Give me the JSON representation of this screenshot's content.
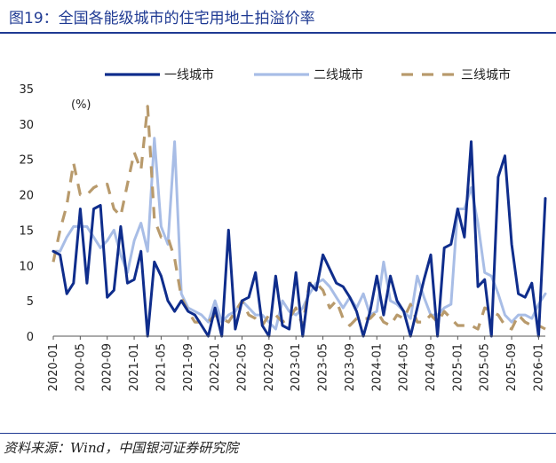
{
  "header": {
    "title": "图19：全国各能级城市的住宅用地土拍溢价率"
  },
  "footer": {
    "source": "资料来源：Wind，中国银河证券研究院"
  },
  "chart_data": {
    "type": "line",
    "unit": "(%)",
    "ylim": [
      0,
      35
    ],
    "yticks": [
      "35",
      "30",
      "25",
      "20",
      "15",
      "10",
      "5",
      "0"
    ],
    "xticks": [
      "2020-01",
      "2020-05",
      "2020-09",
      "2021-01",
      "2021-05",
      "2021-09",
      "2022-01",
      "2022-05",
      "2022-09",
      "2023-01",
      "2023-05",
      "2023-09",
      "2024-01",
      "2024-05",
      "2024-09",
      "2025-01",
      "2025-05",
      "2025-09",
      "2026-01"
    ],
    "legend_position": "top",
    "x": [
      "2020-01",
      "2020-02",
      "2020-03",
      "2020-04",
      "2020-05",
      "2020-06",
      "2020-07",
      "2020-08",
      "2020-09",
      "2020-10",
      "2020-11",
      "2020-12",
      "2021-01",
      "2021-02",
      "2021-03",
      "2021-04",
      "2021-05",
      "2021-06",
      "2021-07",
      "2021-08",
      "2021-09",
      "2021-10",
      "2021-11",
      "2021-12",
      "2022-01",
      "2022-02",
      "2022-03",
      "2022-04",
      "2022-05",
      "2022-06",
      "2022-07",
      "2022-08",
      "2022-09",
      "2022-10",
      "2022-11",
      "2022-12",
      "2023-01",
      "2023-02",
      "2023-03",
      "2023-04",
      "2023-05",
      "2023-06",
      "2023-07",
      "2023-08",
      "2023-09",
      "2023-10",
      "2023-11",
      "2023-12",
      "2024-01",
      "2024-02",
      "2024-03",
      "2024-04",
      "2024-05",
      "2024-06",
      "2024-07",
      "2024-08",
      "2024-09",
      "2024-10",
      "2024-11",
      "2024-12",
      "2025-01",
      "2025-02",
      "2025-03",
      "2025-04",
      "2025-05",
      "2025-06",
      "2025-07",
      "2025-08",
      "2025-09",
      "2025-10",
      "2025-11",
      "2025-12",
      "2026-01",
      "2026-02"
    ],
    "series": [
      {
        "name": "一线城市",
        "color": "#0f2d8c",
        "style": "solid",
        "values": [
          12,
          11.5,
          6,
          7.5,
          18,
          7.5,
          18,
          18.5,
          5.5,
          6.5,
          15.5,
          7.5,
          8,
          12,
          0,
          10.5,
          8.5,
          5,
          3.5,
          5,
          3.5,
          3,
          1.5,
          0,
          4,
          0,
          15,
          1,
          5,
          5.5,
          9,
          1.5,
          0,
          8.5,
          1.5,
          1,
          9,
          0,
          7.5,
          6.5,
          11.5,
          9.5,
          7.5,
          7,
          5.5,
          3.5,
          0,
          3.5,
          8.5,
          3,
          8.5,
          5,
          3.5,
          0,
          4,
          8,
          11.5,
          0,
          12.5,
          13,
          18,
          14,
          27.5,
          7,
          8,
          0,
          22.5,
          25.5,
          13,
          6,
          5.5,
          7.5,
          0,
          19.5
        ]
      },
      {
        "name": "二线城市",
        "color": "#a8bde6",
        "style": "solid",
        "values": [
          12,
          12,
          14,
          15.5,
          15.5,
          15.5,
          14,
          12.5,
          13.5,
          15,
          11.5,
          9,
          13.5,
          16,
          12,
          28,
          15.5,
          13,
          27.5,
          6,
          4,
          3.5,
          3,
          2,
          5,
          2,
          3,
          3.5,
          5,
          4,
          3,
          3,
          2,
          1,
          5,
          3.5,
          3,
          4,
          6,
          7.5,
          8,
          7,
          5.5,
          4,
          5.5,
          4,
          6,
          3,
          3.5,
          10.5,
          5,
          4.5,
          3.5,
          2.5,
          8.5,
          5.5,
          3,
          3,
          4,
          4.5,
          18,
          18,
          21,
          16,
          9,
          8.5,
          6,
          3,
          2,
          3,
          3,
          2.5,
          4.5,
          6
        ]
      },
      {
        "name": "三线城市",
        "color": "#b89a6c",
        "style": "dashed",
        "values": [
          10.5,
          15,
          18.5,
          24.5,
          20,
          20,
          21,
          21.5,
          21.5,
          18,
          17,
          21.5,
          26,
          23.5,
          32.5,
          16.5,
          14,
          14,
          11,
          5.5,
          3.5,
          2,
          2,
          2,
          3,
          2.5,
          2,
          3.5,
          5,
          3,
          2.5,
          1.5,
          3,
          3,
          2,
          2.5,
          4,
          1.5,
          7.5,
          7.5,
          6.5,
          4,
          5,
          2.5,
          1.5,
          2.5,
          2.5,
          2.5,
          3.5,
          2,
          1.5,
          3,
          2.5,
          4.5,
          2,
          2,
          3,
          2,
          3.5,
          2.5,
          1.5,
          1.5,
          1.5,
          1,
          4,
          3.5,
          3,
          1.5,
          1,
          3,
          2,
          1.5,
          1.5,
          1
        ]
      }
    ]
  }
}
